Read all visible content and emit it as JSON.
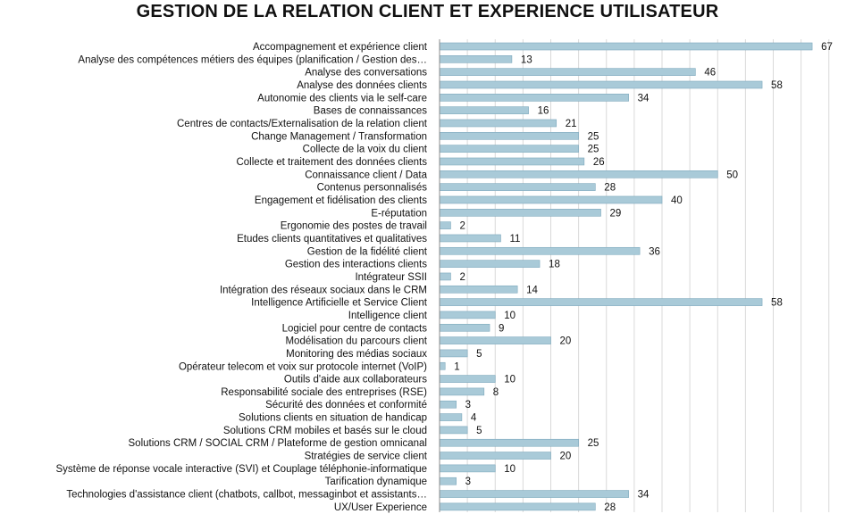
{
  "chart_data": {
    "type": "bar",
    "orientation": "horizontal",
    "title": "GESTION DE LA RELATION CLIENT ET EXPERIENCE UTILISATEUR",
    "xlabel": "",
    "ylabel": "",
    "xlim": [
      0,
      70
    ],
    "grid": true,
    "legend": "none",
    "bar_color": "#a9cad8",
    "categories": [
      "Accompagnement et expérience client",
      "Analyse des compétences métiers des équipes (planification / Gestion des…",
      "Analyse des conversations",
      "Analyse des données clients",
      "Autonomie des clients via le self-care",
      "Bases de connaissances",
      "Centres de contacts/Externalisation de la relation client",
      "Change Management / Transformation",
      "Collecte de la voix du client",
      "Collecte et traitement des données clients",
      "Connaissance client / Data",
      "Contenus personnalisés",
      "Engagement et fidélisation des clients",
      "E-réputation",
      "Ergonomie des postes de travail",
      "Etudes clients quantitatives et qualitatives",
      "Gestion de la fidélité client",
      "Gestion des interactions clients",
      "Intégrateur SSII",
      "Intégration des réseaux sociaux dans le CRM",
      "Intelligence Artificielle et Service Client",
      "Intelligence client",
      "Logiciel pour centre de contacts",
      "Modélisation du parcours client",
      "Monitoring des médias sociaux",
      "Opérateur telecom et voix sur protocole internet (VoIP)",
      "Outils d'aide aux collaborateurs",
      "Responsabilité sociale des entreprises (RSE)",
      "Sécurité des données et conformité",
      "Solutions clients en situation de handicap",
      "Solutions CRM mobiles et basés sur le cloud",
      "Solutions CRM / SOCIAL CRM / Plateforme de gestion omnicanal",
      "Stratégies de service client",
      "Système de réponse vocale interactive (SVI) et Couplage téléphonie-informatique",
      "Tarification dynamique",
      "Technologies d'assistance client (chatbots, callbot, messaginbot et assistants…",
      "UX/User Experience"
    ],
    "values": [
      67,
      13,
      46,
      58,
      34,
      16,
      21,
      25,
      25,
      26,
      50,
      28,
      40,
      29,
      2,
      11,
      36,
      18,
      2,
      14,
      58,
      10,
      9,
      20,
      5,
      1,
      10,
      8,
      3,
      4,
      5,
      25,
      20,
      10,
      3,
      34,
      28
    ]
  }
}
